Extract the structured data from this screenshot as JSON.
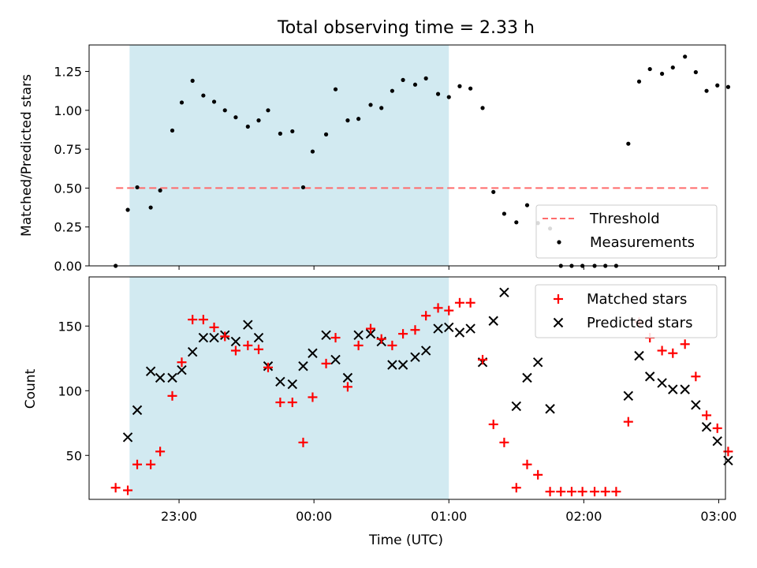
{
  "figure": {
    "title": "Total observing time = 2.33 h",
    "xlabel": "Time (UTC)",
    "xticks": [
      "23:00",
      "00:00",
      "01:00",
      "02:00",
      "03:00"
    ]
  },
  "colors": {
    "shade": "#add8e6",
    "threshold": "#ff6b6b",
    "measure": "#000000",
    "matched": "#ff0000",
    "predicted": "#000000"
  },
  "chart_data": [
    {
      "type": "scatter",
      "ylabel": "Matched/Predicted stars",
      "ylim": [
        0,
        1.42
      ],
      "yticks": [
        "0.00",
        "0.25",
        "0.50",
        "0.75",
        "1.00",
        "1.25"
      ],
      "x_unit": "hours relative to 00:00 UTC",
      "xlim": [
        "22:20",
        "03:03"
      ],
      "shaded_interval": [
        "22:38",
        "01:00"
      ],
      "threshold": {
        "name": "Threshold",
        "value": 0.5,
        "x_range": [
          "22:32",
          "02:56"
        ]
      },
      "legend": [
        "Threshold",
        "Measurements"
      ],
      "legend_position": "lower right",
      "series": [
        {
          "name": "Measurements",
          "points": [
            [
              -1.47,
              0.0
            ],
            [
              -1.38,
              0.36
            ],
            [
              -1.31,
              0.505
            ],
            [
              -1.21,
              0.375
            ],
            [
              -1.14,
              0.485
            ],
            [
              -1.05,
              0.87
            ],
            [
              -0.98,
              1.05
            ],
            [
              -0.9,
              1.19
            ],
            [
              -0.82,
              1.095
            ],
            [
              -0.74,
              1.055
            ],
            [
              -0.66,
              1.0
            ],
            [
              -0.58,
              0.955
            ],
            [
              -0.49,
              0.895
            ],
            [
              -0.41,
              0.935
            ],
            [
              -0.34,
              1.0
            ],
            [
              -0.25,
              0.85
            ],
            [
              -0.16,
              0.865
            ],
            [
              -0.08,
              0.505
            ],
            [
              -0.01,
              0.735
            ],
            [
              0.09,
              0.845
            ],
            [
              0.16,
              1.135
            ],
            [
              0.25,
              0.935
            ],
            [
              0.33,
              0.945
            ],
            [
              0.42,
              1.035
            ],
            [
              0.5,
              1.015
            ],
            [
              0.58,
              1.125
            ],
            [
              0.66,
              1.195
            ],
            [
              0.75,
              1.165
            ],
            [
              0.83,
              1.205
            ],
            [
              0.92,
              1.105
            ],
            [
              1.0,
              1.085
            ],
            [
              1.08,
              1.155
            ],
            [
              1.16,
              1.14
            ],
            [
              1.25,
              1.015
            ],
            [
              1.33,
              0.475
            ],
            [
              1.41,
              0.335
            ],
            [
              1.5,
              0.28
            ],
            [
              1.58,
              0.39
            ],
            [
              1.66,
              0.275
            ],
            [
              1.75,
              0.24
            ],
            [
              1.83,
              0.0
            ],
            [
              1.91,
              0.0
            ],
            [
              1.99,
              0.0
            ],
            [
              2.08,
              0.0
            ],
            [
              2.16,
              0.0
            ],
            [
              2.24,
              0.0
            ],
            [
              2.33,
              0.785
            ],
            [
              2.41,
              1.185
            ],
            [
              2.49,
              1.265
            ],
            [
              2.58,
              1.235
            ],
            [
              2.66,
              1.275
            ],
            [
              2.75,
              1.345
            ],
            [
              2.83,
              1.245
            ],
            [
              2.91,
              1.125
            ],
            [
              2.99,
              1.16
            ],
            [
              3.07,
              1.15
            ]
          ]
        }
      ]
    },
    {
      "type": "scatter",
      "ylabel": "Count",
      "ylim": [
        16,
        188
      ],
      "yticks": [
        "50",
        "100",
        "150"
      ],
      "xticks": [
        "23:00",
        "00:00",
        "01:00",
        "02:00",
        "03:00"
      ],
      "x_unit": "hours relative to 00:00 UTC",
      "xlim": [
        "22:20",
        "03:03"
      ],
      "shaded_interval": [
        "22:38",
        "01:00"
      ],
      "legend": [
        "Matched stars",
        "Predicted stars"
      ],
      "legend_position": "upper right",
      "series": [
        {
          "name": "Matched stars",
          "marker": "+",
          "points": [
            [
              -1.47,
              25
            ],
            [
              -1.38,
              23
            ],
            [
              -1.31,
              43
            ],
            [
              -1.21,
              43
            ],
            [
              -1.14,
              53
            ],
            [
              -1.05,
              96
            ],
            [
              -0.98,
              122
            ],
            [
              -0.9,
              155
            ],
            [
              -0.82,
              155
            ],
            [
              -0.74,
              149
            ],
            [
              -0.66,
              142
            ],
            [
              -0.58,
              131
            ],
            [
              -0.49,
              135
            ],
            [
              -0.41,
              132
            ],
            [
              -0.34,
              118
            ],
            [
              -0.25,
              91
            ],
            [
              -0.16,
              91
            ],
            [
              -0.08,
              60
            ],
            [
              -0.01,
              95
            ],
            [
              0.09,
              121
            ],
            [
              0.16,
              141
            ],
            [
              0.25,
              103
            ],
            [
              0.33,
              135
            ],
            [
              0.42,
              148
            ],
            [
              0.5,
              140
            ],
            [
              0.58,
              135
            ],
            [
              0.66,
              144
            ],
            [
              0.75,
              147
            ],
            [
              0.83,
              158
            ],
            [
              0.92,
              164
            ],
            [
              1.0,
              162
            ],
            [
              1.08,
              168
            ],
            [
              1.16,
              168
            ],
            [
              1.25,
              124
            ],
            [
              1.33,
              74
            ],
            [
              1.41,
              60
            ],
            [
              1.5,
              25
            ],
            [
              1.58,
              43
            ],
            [
              1.66,
              35
            ],
            [
              1.75,
              22
            ],
            [
              1.83,
              22
            ],
            [
              1.91,
              22
            ],
            [
              1.99,
              22
            ],
            [
              2.08,
              22
            ],
            [
              2.16,
              22
            ],
            [
              2.24,
              22
            ],
            [
              2.33,
              76
            ],
            [
              2.41,
              153
            ],
            [
              2.49,
              141
            ],
            [
              2.58,
              131
            ],
            [
              2.66,
              129
            ],
            [
              2.75,
              136
            ],
            [
              2.83,
              111
            ],
            [
              2.91,
              81
            ],
            [
              2.99,
              71
            ],
            [
              3.07,
              53
            ]
          ]
        },
        {
          "name": "Predicted stars",
          "marker": "x",
          "points": [
            [
              -1.38,
              64
            ],
            [
              -1.31,
              85
            ],
            [
              -1.21,
              115
            ],
            [
              -1.14,
              110
            ],
            [
              -1.05,
              110
            ],
            [
              -0.98,
              116
            ],
            [
              -0.9,
              130
            ],
            [
              -0.82,
              141
            ],
            [
              -0.74,
              141
            ],
            [
              -0.66,
              143
            ],
            [
              -0.58,
              138
            ],
            [
              -0.49,
              151
            ],
            [
              -0.41,
              141
            ],
            [
              -0.34,
              119
            ],
            [
              -0.25,
              107
            ],
            [
              -0.16,
              105
            ],
            [
              -0.08,
              119
            ],
            [
              -0.01,
              129
            ],
            [
              0.09,
              143
            ],
            [
              0.16,
              124
            ],
            [
              0.25,
              110
            ],
            [
              0.33,
              143
            ],
            [
              0.42,
              144
            ],
            [
              0.5,
              138
            ],
            [
              0.58,
              120
            ],
            [
              0.66,
              120
            ],
            [
              0.75,
              126
            ],
            [
              0.83,
              131
            ],
            [
              0.92,
              148
            ],
            [
              1.0,
              149
            ],
            [
              1.08,
              145
            ],
            [
              1.16,
              148
            ],
            [
              1.25,
              122
            ],
            [
              1.33,
              154
            ],
            [
              1.41,
              176
            ],
            [
              1.5,
              88
            ],
            [
              1.58,
              110
            ],
            [
              1.66,
              122
            ],
            [
              1.75,
              86
            ],
            [
              2.33,
              96
            ],
            [
              2.41,
              127
            ],
            [
              2.49,
              111
            ],
            [
              2.58,
              106
            ],
            [
              2.66,
              101
            ],
            [
              2.75,
              101
            ],
            [
              2.83,
              89
            ],
            [
              2.91,
              72
            ],
            [
              2.99,
              61
            ],
            [
              3.07,
              46
            ]
          ]
        }
      ]
    }
  ]
}
